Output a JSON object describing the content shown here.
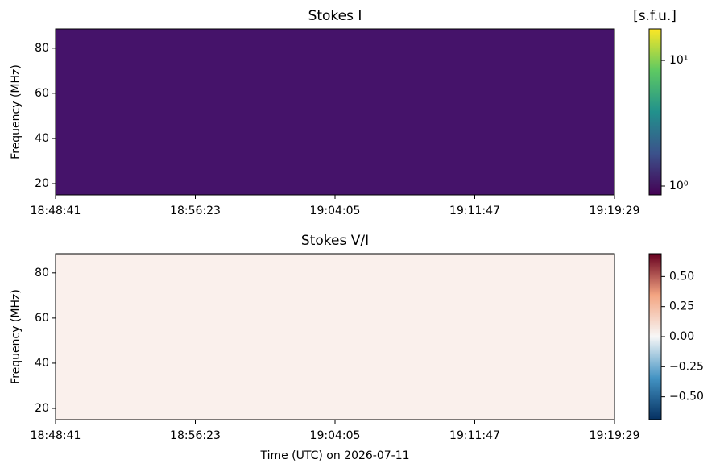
{
  "chart_data": [
    {
      "type": "spectrogram",
      "title": "Stokes I",
      "ylabel": "Frequency (MHz)",
      "xlim": [
        "18:48:41",
        "19:19:29"
      ],
      "xticks": [
        "18:48:41",
        "18:56:23",
        "19:04:05",
        "19:11:47",
        "19:19:29"
      ],
      "ylim": [
        15,
        88.5
      ],
      "yticks": [
        20,
        40,
        60,
        80
      ],
      "image_color": "#45136a",
      "colorbar": {
        "label": "[s.f.u.]",
        "scale": "log",
        "clim": [
          0.85,
          17.8
        ],
        "ticks": [
          {
            "value": 1,
            "label": "10⁰"
          },
          {
            "value": 10,
            "label": "10¹"
          }
        ],
        "colormap": [
          "#440154",
          "#3b528b",
          "#21918c",
          "#5ec962",
          "#fde725"
        ]
      }
    },
    {
      "type": "spectrogram",
      "title": "Stokes V/I",
      "ylabel": "Frequency (MHz)",
      "xlabel": "Time (UTC) on 2026-07-11",
      "xlim": [
        "18:48:41",
        "19:19:29"
      ],
      "xticks": [
        "18:48:41",
        "18:56:23",
        "19:04:05",
        "19:11:47",
        "19:19:29"
      ],
      "ylim": [
        15,
        88.5
      ],
      "yticks": [
        20,
        40,
        60,
        80
      ],
      "image_color": "#faf0ec",
      "colorbar": {
        "scale": "linear",
        "clim": [
          -0.69,
          0.69
        ],
        "ticks": [
          {
            "value": -0.5,
            "label": "−0.50"
          },
          {
            "value": -0.25,
            "label": "−0.25"
          },
          {
            "value": 0,
            "label": "0.00"
          },
          {
            "value": 0.25,
            "label": "0.25"
          },
          {
            "value": 0.5,
            "label": "0.50"
          }
        ],
        "colormap": [
          "#053061",
          "#4393c3",
          "#f7f7f7",
          "#f4a582",
          "#67001f"
        ]
      }
    }
  ]
}
